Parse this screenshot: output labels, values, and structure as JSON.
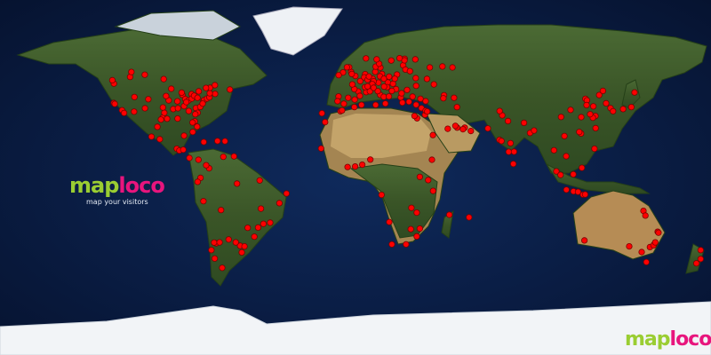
{
  "brand": {
    "part1": "map",
    "part2": "loco",
    "tagline": "map your visitors"
  },
  "colors": {
    "ocean": "#0a1d44",
    "land": "#3d5a2a",
    "desert": "#b99a62",
    "ice": "#f2f4f7",
    "dot": "#ff0000",
    "dot_outline": "#7a0000",
    "brand_green": "#9acd32",
    "brand_pink": "#e8157d"
  },
  "map": {
    "projection": "equirectangular",
    "visitor_locations": [
      [
        -122.4,
        37.8
      ],
      [
        -118.2,
        34.1
      ],
      [
        -122.3,
        47.6
      ],
      [
        -123.1,
        49.3
      ],
      [
        -117.2,
        32.7
      ],
      [
        -121.9,
        37.3
      ],
      [
        -112.1,
        33.4
      ],
      [
        -111.9,
        40.8
      ],
      [
        -104.9,
        39.7
      ],
      [
        -106.6,
        35.1
      ],
      [
        -97.7,
        30.3
      ],
      [
        -96.8,
        32.8
      ],
      [
        -95.4,
        29.8
      ],
      [
        -98.5,
        29.4
      ],
      [
        -90.1,
        29.9
      ],
      [
        -93.3,
        45.0
      ],
      [
        -87.6,
        41.9
      ],
      [
        -83.0,
        42.3
      ],
      [
        -84.4,
        33.7
      ],
      [
        -80.2,
        25.8
      ],
      [
        -81.4,
        28.5
      ],
      [
        -82.5,
        27.9
      ],
      [
        -80.8,
        35.2
      ],
      [
        -78.6,
        35.8
      ],
      [
        -77.0,
        38.9
      ],
      [
        -76.6,
        39.3
      ],
      [
        -75.2,
        40.0
      ],
      [
        -74.0,
        40.7
      ],
      [
        -71.1,
        42.4
      ],
      [
        -73.8,
        42.7
      ],
      [
        -79.4,
        43.7
      ],
      [
        -73.6,
        45.5
      ],
      [
        -75.7,
        45.4
      ],
      [
        -86.8,
        36.2
      ],
      [
        -86.2,
        39.8
      ],
      [
        -84.5,
        39.1
      ],
      [
        -82.9,
        40.0
      ],
      [
        -81.7,
        41.5
      ],
      [
        -80.0,
        40.4
      ],
      [
        -88.0,
        43.0
      ],
      [
        -90.2,
        38.6
      ],
      [
        -94.6,
        39.1
      ],
      [
        -95.9,
        41.3
      ],
      [
        -97.5,
        35.5
      ],
      [
        -92.3,
        34.7
      ],
      [
        -89.9,
        35.1
      ],
      [
        -85.7,
        38.2
      ],
      [
        -77.4,
        37.5
      ],
      [
        -79.9,
        32.8
      ],
      [
        -81.1,
        32.1
      ],
      [
        -114.1,
        51.0
      ],
      [
        -113.5,
        53.5
      ],
      [
        -97.1,
        49.9
      ],
      [
        -106.7,
        52.1
      ],
      [
        -63.6,
        44.6
      ],
      [
        -71.2,
        46.8
      ],
      [
        -100.3,
        25.7
      ],
      [
        -99.1,
        19.4
      ],
      [
        -103.3,
        20.7
      ],
      [
        -86.8,
        21.2
      ],
      [
        -90.5,
        14.6
      ],
      [
        -84.1,
        9.9
      ],
      [
        -79.5,
        9.0
      ],
      [
        -89.2,
        13.7
      ],
      [
        -87.2,
        14.1
      ],
      [
        -76.8,
        18.0
      ],
      [
        -66.1,
        18.4
      ],
      [
        -69.9,
        18.5
      ],
      [
        -82.4,
        23.1
      ],
      [
        -61.5,
        10.7
      ],
      [
        -74.1,
        4.7
      ],
      [
        -75.6,
        6.2
      ],
      [
        -66.9,
        10.5
      ],
      [
        -78.5,
        -0.2
      ],
      [
        -79.9,
        -2.2
      ],
      [
        -77.0,
        -12.0
      ],
      [
        -68.1,
        -16.5
      ],
      [
        -70.6,
        -33.4
      ],
      [
        -71.6,
        -33.0
      ],
      [
        -73.0,
        -36.8
      ],
      [
        -58.4,
        -34.6
      ],
      [
        -64.2,
        -31.4
      ],
      [
        -68.8,
        -32.9
      ],
      [
        -60.6,
        -32.9
      ],
      [
        -57.6,
        -38.0
      ],
      [
        -56.2,
        -34.9
      ],
      [
        -46.6,
        -23.5
      ],
      [
        -43.2,
        -22.9
      ],
      [
        -47.9,
        -15.8
      ],
      [
        -49.3,
        -25.4
      ],
      [
        -51.2,
        -30.0
      ],
      [
        -38.5,
        -13.0
      ],
      [
        -34.9,
        -8.1
      ],
      [
        -60.0,
        -3.1
      ],
      [
        -48.5,
        -1.5
      ],
      [
        -54.6,
        -25.5
      ],
      [
        -67.5,
        -45.8
      ],
      [
        -71.3,
        -41.1
      ],
      [
        -0.1,
        51.5
      ],
      [
        -2.2,
        53.5
      ],
      [
        -3.2,
        55.9
      ],
      [
        -6.3,
        53.3
      ],
      [
        -8.5,
        51.9
      ],
      [
        -1.9,
        52.5
      ],
      [
        -4.3,
        55.9
      ],
      [
        2.4,
        48.9
      ],
      [
        5.4,
        43.3
      ],
      [
        4.8,
        45.8
      ],
      [
        1.4,
        43.6
      ],
      [
        -0.6,
        44.8
      ],
      [
        -1.6,
        47.2
      ],
      [
        7.3,
        43.7
      ],
      [
        -3.7,
        40.4
      ],
      [
        2.2,
        41.4
      ],
      [
        -0.4,
        39.5
      ],
      [
        -5.9,
        37.4
      ],
      [
        -8.6,
        41.1
      ],
      [
        -9.1,
        38.7
      ],
      [
        4.9,
        52.4
      ],
      [
        4.4,
        50.8
      ],
      [
        6.1,
        49.6
      ],
      [
        8.7,
        50.1
      ],
      [
        13.4,
        52.5
      ],
      [
        10.0,
        53.6
      ],
      [
        11.6,
        48.1
      ],
      [
        9.2,
        48.8
      ],
      [
        6.8,
        51.2
      ],
      [
        12.4,
        51.3
      ],
      [
        8.5,
        47.4
      ],
      [
        6.1,
        46.2
      ],
      [
        16.4,
        48.2
      ],
      [
        14.4,
        50.1
      ],
      [
        19.0,
        47.5
      ],
      [
        21.0,
        52.2
      ],
      [
        19.9,
        50.1
      ],
      [
        17.0,
        51.1
      ],
      [
        12.5,
        41.9
      ],
      [
        9.2,
        45.5
      ],
      [
        11.3,
        43.8
      ],
      [
        14.3,
        40.9
      ],
      [
        15.1,
        37.5
      ],
      [
        16.9,
        41.1
      ],
      [
        23.7,
        38.0
      ],
      [
        22.9,
        40.6
      ],
      [
        26.1,
        44.4
      ],
      [
        23.3,
        42.7
      ],
      [
        20.5,
        44.8
      ],
      [
        16.0,
        45.8
      ],
      [
        14.5,
        46.1
      ],
      [
        18.4,
        43.9
      ],
      [
        12.6,
        55.7
      ],
      [
        10.2,
        56.2
      ],
      [
        18.1,
        59.3
      ],
      [
        11.97,
        57.7
      ],
      [
        10.7,
        59.9
      ],
      [
        5.3,
        60.4
      ],
      [
        24.9,
        60.2
      ],
      [
        22.3,
        60.5
      ],
      [
        24.1,
        56.9
      ],
      [
        25.3,
        54.7
      ],
      [
        24.8,
        59.4
      ],
      [
        27.6,
        53.9
      ],
      [
        30.5,
        50.4
      ],
      [
        36.2,
        50.0
      ],
      [
        30.7,
        46.5
      ],
      [
        37.6,
        55.8
      ],
      [
        30.3,
        59.9
      ],
      [
        49.1,
        55.8
      ],
      [
        44.0,
        56.3
      ],
      [
        39.7,
        47.2
      ],
      [
        28.9,
        41.0
      ],
      [
        32.9,
        39.9
      ],
      [
        27.1,
        38.4
      ],
      [
        30.7,
        36.9
      ],
      [
        35.5,
        38.7
      ],
      [
        33.4,
        35.2
      ],
      [
        35.2,
        31.8
      ],
      [
        35.5,
        33.9
      ],
      [
        36.3,
        33.5
      ],
      [
        44.8,
        41.7
      ],
      [
        44.5,
        40.2
      ],
      [
        49.9,
        40.4
      ],
      [
        31.2,
        30.0
      ],
      [
        29.9,
        31.2
      ],
      [
        10.2,
        36.8
      ],
      [
        3.0,
        36.8
      ],
      [
        -7.6,
        33.6
      ],
      [
        -6.8,
        34.0
      ],
      [
        -17.0,
        32.6
      ],
      [
        -15.4,
        28.1
      ],
      [
        -0.6,
        35.7
      ],
      [
        51.4,
        35.7
      ],
      [
        55.3,
        25.3
      ],
      [
        54.4,
        24.5
      ],
      [
        46.7,
        24.7
      ],
      [
        39.2,
        21.5
      ],
      [
        51.5,
        25.3
      ],
      [
        50.6,
        26.2
      ],
      [
        58.4,
        23.6
      ],
      [
        67.0,
        24.9
      ],
      [
        74.3,
        31.5
      ],
      [
        73.0,
        33.7
      ],
      [
        77.2,
        28.6
      ],
      [
        72.9,
        19.1
      ],
      [
        73.9,
        18.5
      ],
      [
        77.6,
        13.0
      ],
      [
        80.3,
        13.1
      ],
      [
        78.5,
        17.4
      ],
      [
        88.4,
        22.6
      ],
      [
        79.9,
        6.9
      ],
      [
        90.4,
        23.8
      ],
      [
        85.3,
        27.7
      ],
      [
        100.5,
        13.8
      ],
      [
        101.7,
        3.1
      ],
      [
        103.8,
        1.3
      ],
      [
        106.8,
        -6.2
      ],
      [
        110.4,
        -7.0
      ],
      [
        112.7,
        -7.3
      ],
      [
        115.2,
        -8.7
      ],
      [
        106.7,
        10.8
      ],
      [
        105.8,
        21.0
      ],
      [
        121.0,
        14.6
      ],
      [
        114.2,
        22.3
      ],
      [
        113.3,
        23.1
      ],
      [
        121.5,
        31.2
      ],
      [
        120.2,
        30.3
      ],
      [
        118.8,
        32.1
      ],
      [
        116.4,
        39.9
      ],
      [
        117.2,
        39.1
      ],
      [
        114.3,
        30.6
      ],
      [
        104.1,
        30.7
      ],
      [
        108.9,
        34.3
      ],
      [
        121.6,
        25.0
      ],
      [
        126.9,
        37.6
      ],
      [
        129.1,
        35.2
      ],
      [
        139.7,
        35.7
      ],
      [
        135.5,
        34.7
      ],
      [
        130.4,
        33.6
      ],
      [
        141.3,
        43.1
      ],
      [
        125.3,
        43.9
      ],
      [
        123.4,
        41.8
      ],
      [
        120.4,
        36.1
      ],
      [
        117.0,
        36.7
      ],
      [
        116.3,
        -8.6
      ],
      [
        114.6,
        4.9
      ],
      [
        110.3,
        1.6
      ],
      [
        151.2,
        -33.9
      ],
      [
        144.9,
        -37.8
      ],
      [
        153.0,
        -27.5
      ],
      [
        138.6,
        -34.9
      ],
      [
        115.9,
        -31.9
      ],
      [
        149.1,
        -35.3
      ],
      [
        147.3,
        -42.9
      ],
      [
        150.9,
        -34.4
      ],
      [
        145.8,
        -16.9
      ],
      [
        146.8,
        -19.3
      ],
      [
        153.4,
        -28.0
      ],
      [
        151.8,
        -32.9
      ],
      [
        174.8,
        -36.8
      ],
      [
        174.8,
        -41.3
      ],
      [
        172.6,
        -43.5
      ],
      [
        18.4,
        -33.9
      ],
      [
        28.0,
        -26.2
      ],
      [
        31.0,
        -29.9
      ],
      [
        25.6,
        -33.9
      ],
      [
        36.8,
        -1.3
      ],
      [
        39.3,
        -6.8
      ],
      [
        32.6,
        0.3
      ],
      [
        38.7,
        9.0
      ],
      [
        -17.4,
        14.7
      ],
      [
        -0.2,
        5.6
      ],
      [
        3.4,
        6.5
      ],
      [
        7.5,
        9.1
      ],
      [
        -4.0,
        5.3
      ],
      [
        47.5,
        -18.9
      ],
      [
        57.5,
        -20.2
      ],
      [
        13.2,
        -8.8
      ],
      [
        32.6,
        -25.9
      ],
      [
        31.0,
        -17.8
      ],
      [
        28.3,
        -15.4
      ],
      [
        17.1,
        -22.6
      ]
    ]
  }
}
